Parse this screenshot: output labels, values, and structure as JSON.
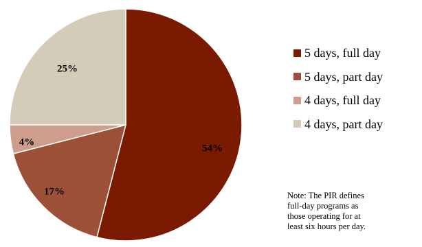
{
  "chart_data": {
    "type": "pie",
    "title": "",
    "categories": [
      "5 days, full day",
      "5 days, part day",
      "4 days, full day",
      "4 days, part day"
    ],
    "values": [
      54,
      17,
      4,
      25
    ],
    "labels": [
      "54%",
      "17%",
      "4%",
      "25%"
    ],
    "colors": [
      "#7a1a00",
      "#9c5038",
      "#cf9d8c",
      "#d4cbb9"
    ],
    "legend_position": "right",
    "start_angle": "12 o'clock",
    "direction": "clockwise"
  },
  "note": {
    "line1": "Note: The PIR defines",
    "line2": "full-day programs as",
    "line3": "those operating for at",
    "line4": "least six hours per day."
  }
}
